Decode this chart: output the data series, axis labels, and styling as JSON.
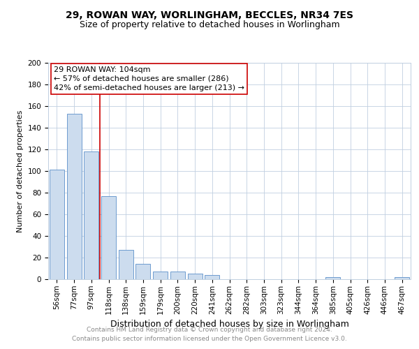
{
  "title1": "29, ROWAN WAY, WORLINGHAM, BECCLES, NR34 7ES",
  "title2": "Size of property relative to detached houses in Worlingham",
  "xlabel": "Distribution of detached houses by size in Worlingham",
  "ylabel": "Number of detached properties",
  "categories": [
    "56sqm",
    "77sqm",
    "97sqm",
    "118sqm",
    "138sqm",
    "159sqm",
    "179sqm",
    "200sqm",
    "220sqm",
    "241sqm",
    "262sqm",
    "282sqm",
    "303sqm",
    "323sqm",
    "344sqm",
    "364sqm",
    "385sqm",
    "405sqm",
    "426sqm",
    "446sqm",
    "467sqm"
  ],
  "values": [
    101,
    153,
    118,
    77,
    27,
    14,
    7,
    7,
    5,
    4,
    0,
    0,
    0,
    0,
    0,
    0,
    2,
    0,
    0,
    0,
    2
  ],
  "bar_color": "#ccdcee",
  "bar_edge_color": "#5b8fc9",
  "reference_line_x": 2.5,
  "annotation_line1": "29 ROWAN WAY: 104sqm",
  "annotation_line2": "← 57% of detached houses are smaller (286)",
  "annotation_line3": "42% of semi-detached houses are larger (213) →",
  "annotation_box_color": "#ffffff",
  "annotation_box_edge": "#cc0000",
  "red_line_color": "#cc0000",
  "ylim": [
    0,
    200
  ],
  "yticks": [
    0,
    20,
    40,
    60,
    80,
    100,
    120,
    140,
    160,
    180,
    200
  ],
  "footer1": "Contains HM Land Registry data © Crown copyright and database right 2024.",
  "footer2": "Contains public sector information licensed under the Open Government Licence v3.0.",
  "bg_color": "#ffffff",
  "grid_color": "#c0cfe0",
  "title1_fontsize": 10,
  "title2_fontsize": 9,
  "xlabel_fontsize": 9,
  "ylabel_fontsize": 8,
  "tick_fontsize": 7.5,
  "annotation_fontsize": 8,
  "footer_fontsize": 6.5
}
